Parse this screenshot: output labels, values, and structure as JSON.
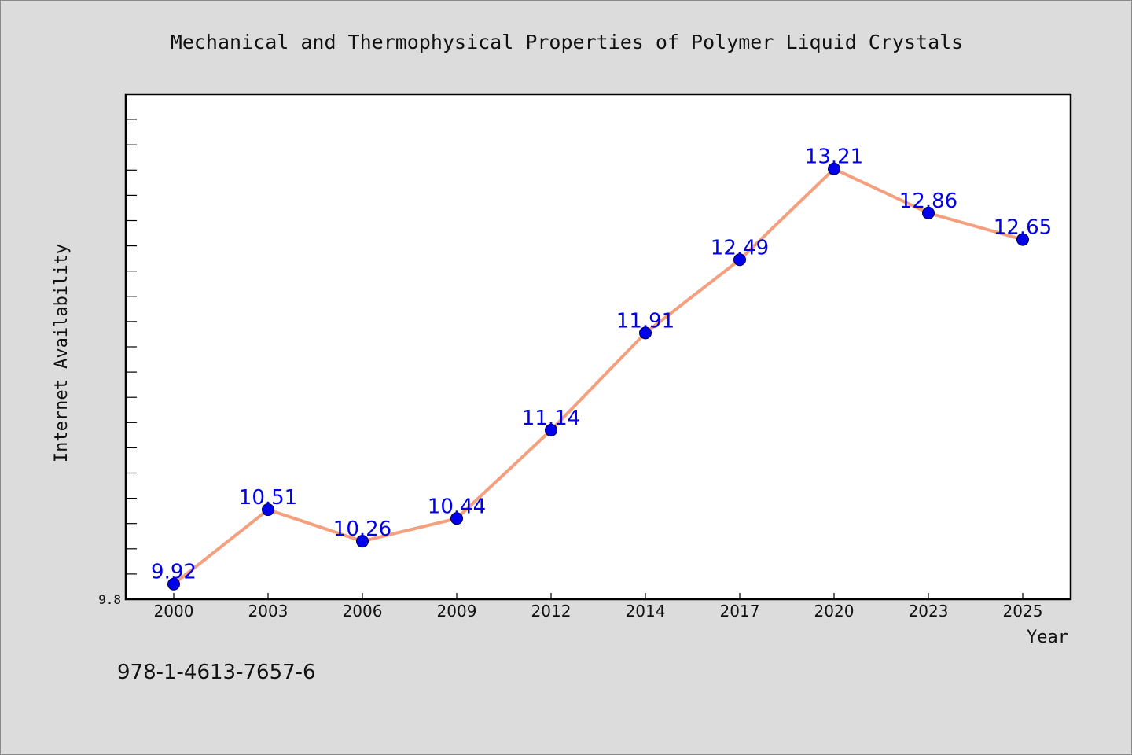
{
  "chart_data": {
    "type": "line",
    "title": "Mechanical and Thermophysical Properties of Polymer Liquid Crystals",
    "xlabel": "Year",
    "ylabel": "Internet Availability",
    "categories": [
      "2000",
      "2003",
      "2006",
      "2009",
      "2012",
      "2014",
      "2017",
      "2020",
      "2023",
      "2025"
    ],
    "series": [
      {
        "values": [
          9.92,
          10.51,
          10.26,
          10.44,
          11.14,
          11.91,
          12.49,
          13.21,
          12.86,
          12.65
        ],
        "data_labels": [
          "9.92",
          "10.51",
          "10.26",
          "10.44",
          "11.14",
          "11.91",
          "12.49",
          "13.21",
          "12.86",
          "12.65"
        ],
        "line_color": "#f4a07e",
        "marker_color": "#0000ee",
        "label_color": "#0000ee"
      }
    ],
    "yticks_labeled": [
      "9.8"
    ],
    "ylim": [
      9.8,
      13.8
    ],
    "grid": false,
    "legend": "none"
  },
  "annotation": {
    "isbn": "978-1-4613-7657-6"
  },
  "colors": {
    "background": "#dcdcdc",
    "plot_background": "#ffffff",
    "axis": "#000000"
  }
}
